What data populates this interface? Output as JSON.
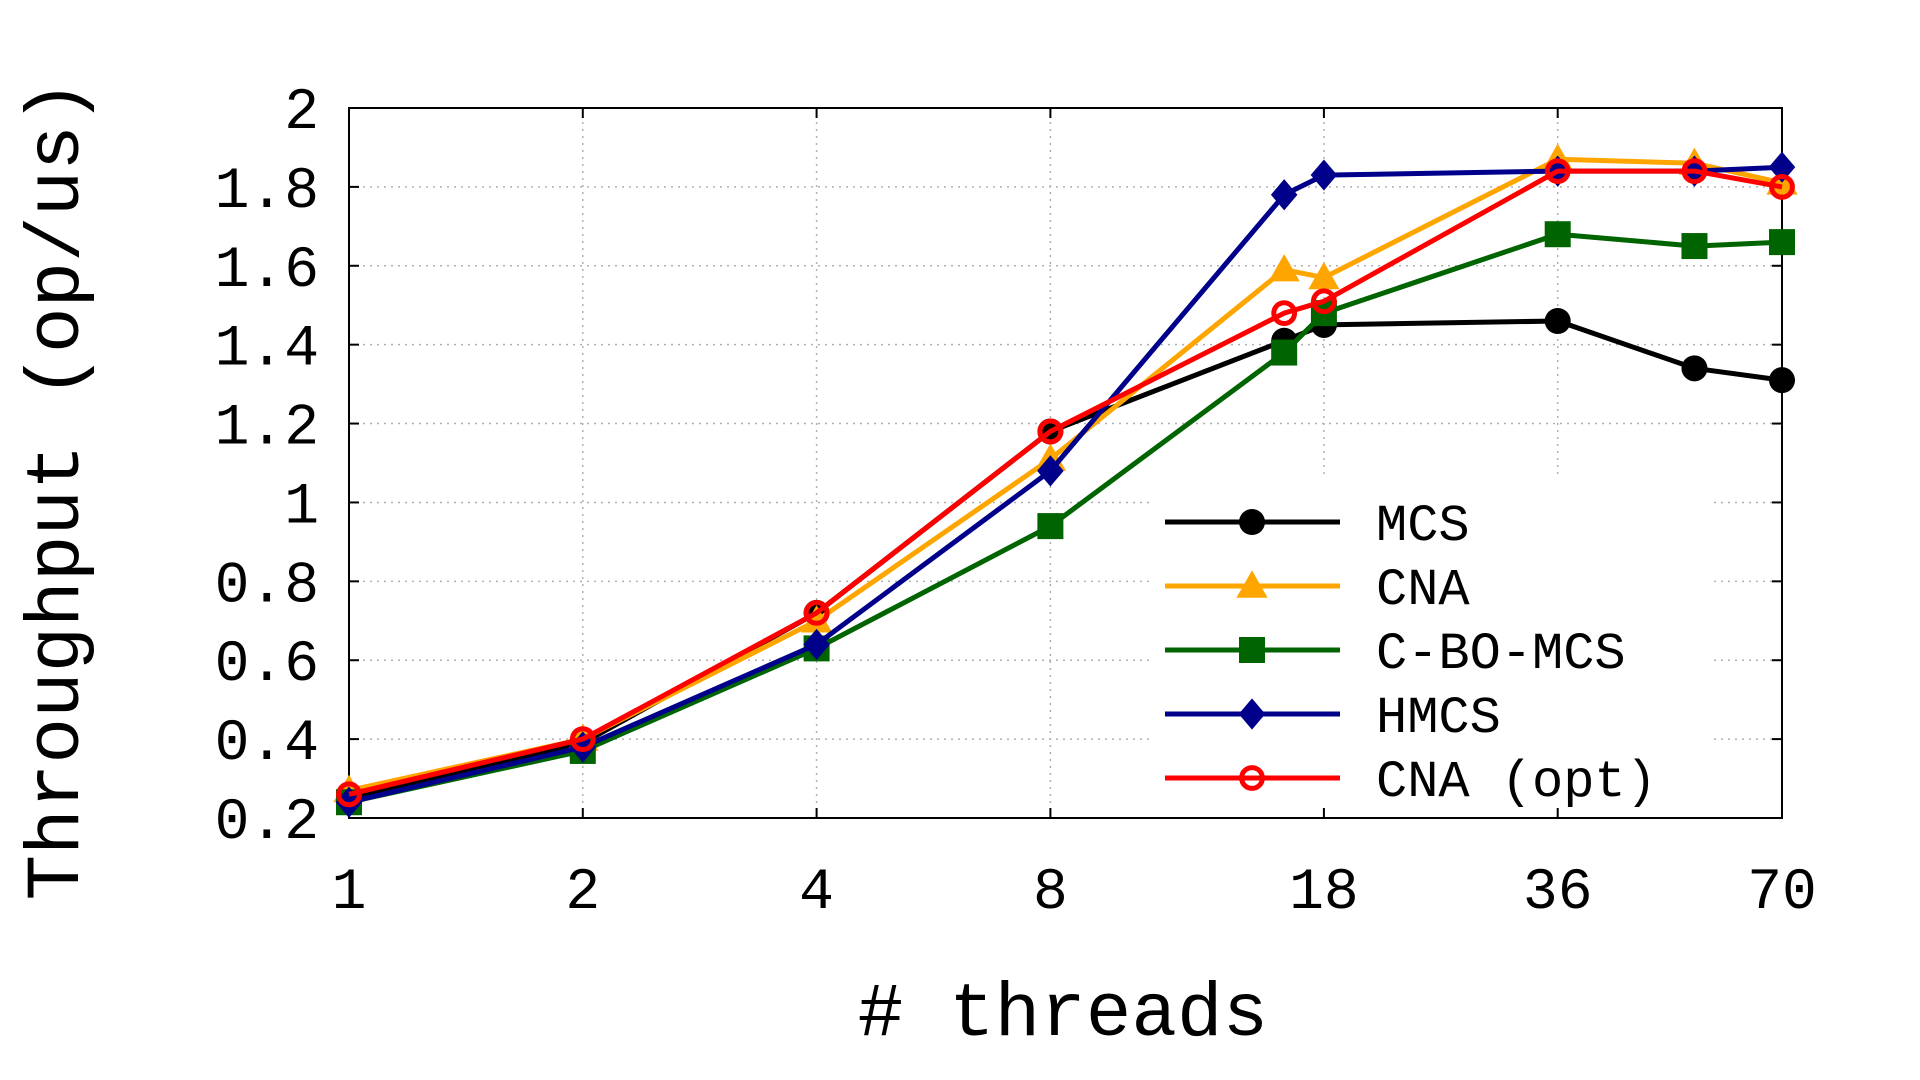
{
  "chart_data": {
    "type": "line",
    "title": "",
    "xlabel": "# threads",
    "ylabel": "Throughput (op/us)",
    "x": [
      1,
      2,
      4,
      8,
      16,
      18,
      36,
      54,
      70
    ],
    "x_tick_labels": [
      "1",
      "2",
      "4",
      "8",
      "18",
      "36",
      "70"
    ],
    "x_tick_positions": [
      1,
      2,
      4,
      8,
      18,
      36,
      70
    ],
    "y_tick_labels": [
      "0.2",
      "0.4",
      "0.6",
      "0.8",
      "1",
      "1.2",
      "1.4",
      "1.6",
      "1.8",
      "2"
    ],
    "y_tick_values": [
      0.2,
      0.4,
      0.6,
      0.8,
      1.0,
      1.2,
      1.4,
      1.6,
      1.8,
      2.0
    ],
    "ylim": [
      0.2,
      2.0
    ],
    "grid": true,
    "legend_position": "bottom-right",
    "series": [
      {
        "name": "MCS",
        "color": "#000000",
        "marker": "circle",
        "values": [
          0.25,
          0.39,
          0.72,
          1.18,
          1.41,
          1.45,
          1.46,
          1.34,
          1.31
        ]
      },
      {
        "name": "CNA",
        "color": "#ffa500",
        "marker": "triangle",
        "values": [
          0.27,
          0.4,
          0.7,
          1.11,
          1.59,
          1.57,
          1.87,
          1.86,
          1.81
        ]
      },
      {
        "name": "C-BO-MCS",
        "color": "#006400",
        "marker": "square",
        "values": [
          0.24,
          0.37,
          0.63,
          0.94,
          1.38,
          1.48,
          1.68,
          1.65,
          1.66
        ]
      },
      {
        "name": "HMCS",
        "color": "#00008b",
        "marker": "diamond",
        "values": [
          0.24,
          0.38,
          0.64,
          1.08,
          1.78,
          1.83,
          1.84,
          1.84,
          1.85
        ]
      },
      {
        "name": "CNA (opt)",
        "color": "#ff0000",
        "marker": "open-circle",
        "values": [
          0.26,
          0.4,
          0.72,
          1.18,
          1.48,
          1.51,
          1.84,
          1.84,
          1.8
        ]
      }
    ]
  }
}
